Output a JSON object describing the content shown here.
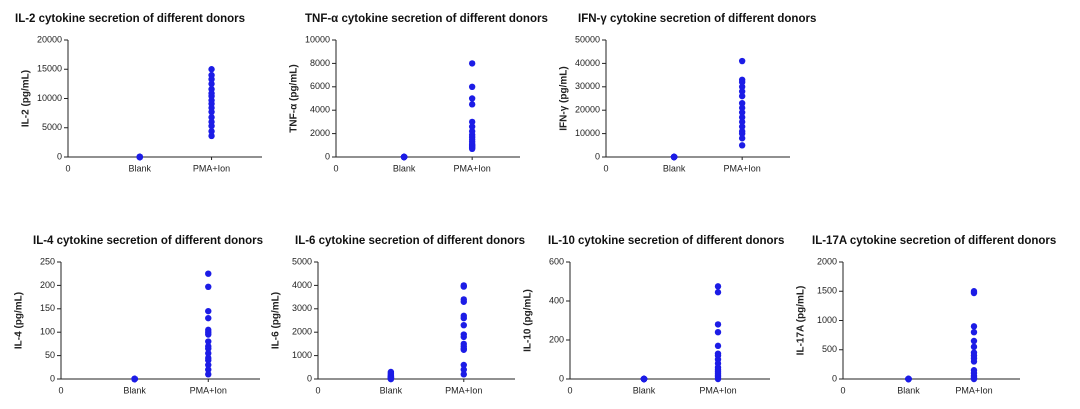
{
  "chart_data": [
    {
      "type": "scatter",
      "title": "IL-2 cytokine secretion of different donors",
      "ylabel": "IL-2 (pg/mL)",
      "x_origin_label": "0",
      "categories": [
        "Blank",
        "PMA+Ion"
      ],
      "color": "#1c1ce6",
      "values": [
        [
          0,
          0,
          0,
          0,
          0,
          0,
          0,
          0,
          0,
          0,
          0,
          0,
          0,
          0,
          0,
          0
        ],
        [
          15000,
          14000,
          13300,
          12500,
          11600,
          10900,
          10400,
          9700,
          9100,
          8400,
          7700,
          6800,
          6000,
          5300,
          4400,
          3600
        ]
      ],
      "ylim": [
        0,
        20000
      ],
      "yticks": [
        0,
        5000,
        10000,
        15000,
        20000
      ]
    },
    {
      "type": "scatter",
      "title": "TNF-α cytokine secretion of different donors",
      "ylabel": "TNF-α (pg/mL)",
      "x_origin_label": "0",
      "categories": [
        "Blank",
        "PMA+Ion"
      ],
      "color": "#1c1ce6",
      "values": [
        [
          0,
          0,
          0,
          0,
          0,
          0,
          0,
          0,
          0,
          0,
          0,
          0,
          0,
          0,
          0,
          0
        ],
        [
          8000,
          6000,
          5000,
          4500,
          3000,
          2600,
          2200,
          1900,
          1700,
          1500,
          1300,
          1100,
          1000,
          900,
          800,
          700
        ]
      ],
      "ylim": [
        0,
        10000
      ],
      "yticks": [
        0,
        2000,
        4000,
        6000,
        8000,
        10000
      ]
    },
    {
      "type": "scatter",
      "title": "IFN-γ cytokine secretion of different donors",
      "ylabel": "IFN-γ (pg/mL)",
      "x_origin_label": "0",
      "categories": [
        "Blank",
        "PMA+Ion"
      ],
      "color": "#1c1ce6",
      "values": [
        [
          0,
          0,
          0,
          0,
          0,
          0,
          0,
          0,
          0,
          0,
          0,
          0,
          0,
          0,
          0,
          0
        ],
        [
          41000,
          33000,
          32000,
          30000,
          28000,
          26000,
          23000,
          21000,
          19000,
          17000,
          15000,
          13000,
          11000,
          10000,
          8000,
          5000
        ]
      ],
      "ylim": [
        0,
        50000
      ],
      "yticks": [
        0,
        10000,
        20000,
        30000,
        40000,
        50000
      ]
    },
    {
      "type": "scatter",
      "title": "IL-4 cytokine secretion of different donors",
      "ylabel": "IL-4 (pg/mL)",
      "x_origin_label": "0",
      "categories": [
        "Blank",
        "PMA+Ion"
      ],
      "color": "#1c1ce6",
      "values": [
        [
          0,
          0,
          0,
          0,
          0,
          0,
          0,
          0,
          0,
          0,
          0,
          0,
          0,
          0,
          0,
          0
        ],
        [
          225,
          197,
          145,
          130,
          105,
          100,
          95,
          80,
          70,
          65,
          55,
          45,
          40,
          30,
          20,
          10
        ]
      ],
      "ylim": [
        0,
        250
      ],
      "yticks": [
        0,
        50,
        100,
        150,
        200,
        250
      ]
    },
    {
      "type": "scatter",
      "title": "IL-6 cytokine secretion of different donors",
      "ylabel": "IL-6 (pg/mL)",
      "x_origin_label": "0",
      "categories": [
        "Blank",
        "PMA+Ion"
      ],
      "color": "#1c1ce6",
      "values": [
        [
          300,
          250,
          200,
          150,
          120,
          100,
          80,
          60,
          50,
          40,
          30,
          20,
          10,
          5,
          0,
          0
        ],
        [
          4000,
          3950,
          3400,
          3300,
          2700,
          2600,
          2300,
          1900,
          1800,
          1500,
          1400,
          1300,
          1250,
          600,
          400,
          200
        ]
      ],
      "ylim": [
        0,
        5000
      ],
      "yticks": [
        0,
        1000,
        2000,
        3000,
        4000,
        5000
      ]
    },
    {
      "type": "scatter",
      "title": "IL-10 cytokine secretion of different donors",
      "ylabel": "IL-10 (pg/mL)",
      "x_origin_label": "0",
      "categories": [
        "Blank",
        "PMA+Ion"
      ],
      "color": "#1c1ce6",
      "values": [
        [
          0,
          0,
          0,
          0,
          0,
          0,
          0,
          0,
          0,
          0,
          0,
          0,
          0,
          0,
          0,
          0
        ],
        [
          475,
          445,
          280,
          240,
          170,
          130,
          120,
          100,
          80,
          60,
          50,
          40,
          30,
          20,
          10,
          0
        ]
      ],
      "ylim": [
        0,
        600
      ],
      "yticks": [
        0,
        200,
        400,
        600
      ]
    },
    {
      "type": "scatter",
      "title": "IL-17A cytokine secretion of different donors",
      "ylabel": "IL-17A (pg/mL)",
      "x_origin_label": "0",
      "categories": [
        "Blank",
        "PMA+Ion"
      ],
      "color": "#1c1ce6",
      "values": [
        [
          0,
          0,
          0,
          0,
          0,
          0,
          0,
          0,
          0,
          0,
          0,
          0,
          0,
          0,
          0,
          0
        ],
        [
          1500,
          1470,
          900,
          800,
          650,
          550,
          450,
          400,
          350,
          300,
          150,
          100,
          50,
          20,
          10,
          0
        ]
      ],
      "ylim": [
        0,
        2000
      ],
      "yticks": [
        0,
        500,
        1000,
        1500,
        2000
      ]
    }
  ]
}
